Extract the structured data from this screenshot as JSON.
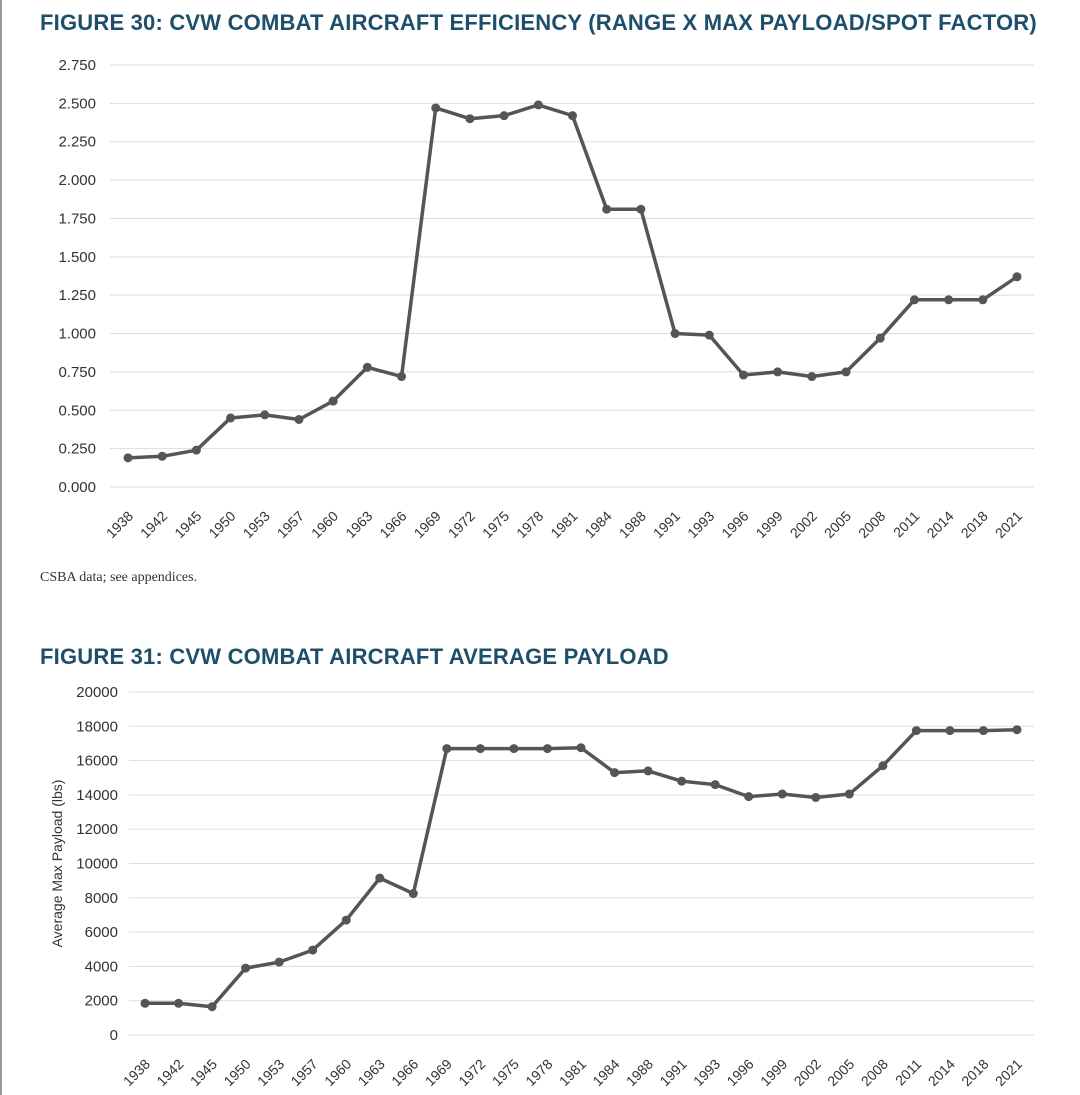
{
  "figure30": {
    "title": "FIGURE 30: CVW COMBAT AIRCRAFT EFFICIENCY (RANGE X MAX PAYLOAD/SPOT FACTOR)",
    "source": "CSBA data; see appendices."
  },
  "figure31": {
    "title": "FIGURE 31: CVW COMBAT AIRCRAFT AVERAGE PAYLOAD"
  },
  "colors": {
    "title": "#1d4f6b",
    "line": "#555555",
    "grid": "#dddddd"
  },
  "chart_data": [
    {
      "type": "line",
      "title": "FIGURE 30: CVW COMBAT AIRCRAFT EFFICIENCY (RANGE X MAX PAYLOAD/SPOT FACTOR)",
      "xlabel": "",
      "ylabel": "",
      "ylim": [
        0,
        2.75
      ],
      "yticks": [
        "0.000",
        "0.250",
        "0.500",
        "0.750",
        "1.000",
        "1.250",
        "1.500",
        "1.750",
        "2.000",
        "2.250",
        "2.500",
        "2.750"
      ],
      "grid": true,
      "categories": [
        "1938",
        "1942",
        "1945",
        "1950",
        "1953",
        "1957",
        "1960",
        "1963",
        "1966",
        "1969",
        "1972",
        "1975",
        "1978",
        "1981",
        "1984",
        "1988",
        "1991",
        "1993",
        "1996",
        "1999",
        "2002",
        "2005",
        "2008",
        "2011",
        "2014",
        "2018",
        "2021"
      ],
      "values": [
        0.19,
        0.2,
        0.24,
        0.45,
        0.47,
        0.44,
        0.56,
        0.78,
        0.72,
        2.47,
        2.4,
        2.42,
        2.49,
        2.42,
        1.81,
        1.81,
        1.0,
        0.99,
        0.73,
        0.75,
        0.72,
        0.75,
        0.97,
        1.22,
        1.22,
        1.22,
        1.37
      ]
    },
    {
      "type": "line",
      "title": "FIGURE 31: CVW COMBAT AIRCRAFT AVERAGE PAYLOAD",
      "xlabel": "",
      "ylabel": "Average Max Payload (lbs)",
      "ylim": [
        0,
        20000
      ],
      "yticks": [
        "0",
        "2000",
        "4000",
        "6000",
        "8000",
        "10000",
        "12000",
        "14000",
        "16000",
        "18000",
        "20000"
      ],
      "grid": true,
      "categories": [
        "1938",
        "1942",
        "1945",
        "1950",
        "1953",
        "1957",
        "1960",
        "1963",
        "1966",
        "1969",
        "1972",
        "1975",
        "1978",
        "1981",
        "1984",
        "1988",
        "1991",
        "1993",
        "1996",
        "1999",
        "2002",
        "2005",
        "2008",
        "2011",
        "2014",
        "2018",
        "2021"
      ],
      "values": [
        1850,
        1850,
        1650,
        3900,
        4250,
        4950,
        6700,
        9150,
        8250,
        16700,
        16700,
        16700,
        16700,
        16750,
        15300,
        15400,
        14800,
        14600,
        13900,
        14050,
        13850,
        14050,
        15700,
        17750,
        17750,
        17750,
        17800
      ]
    }
  ]
}
